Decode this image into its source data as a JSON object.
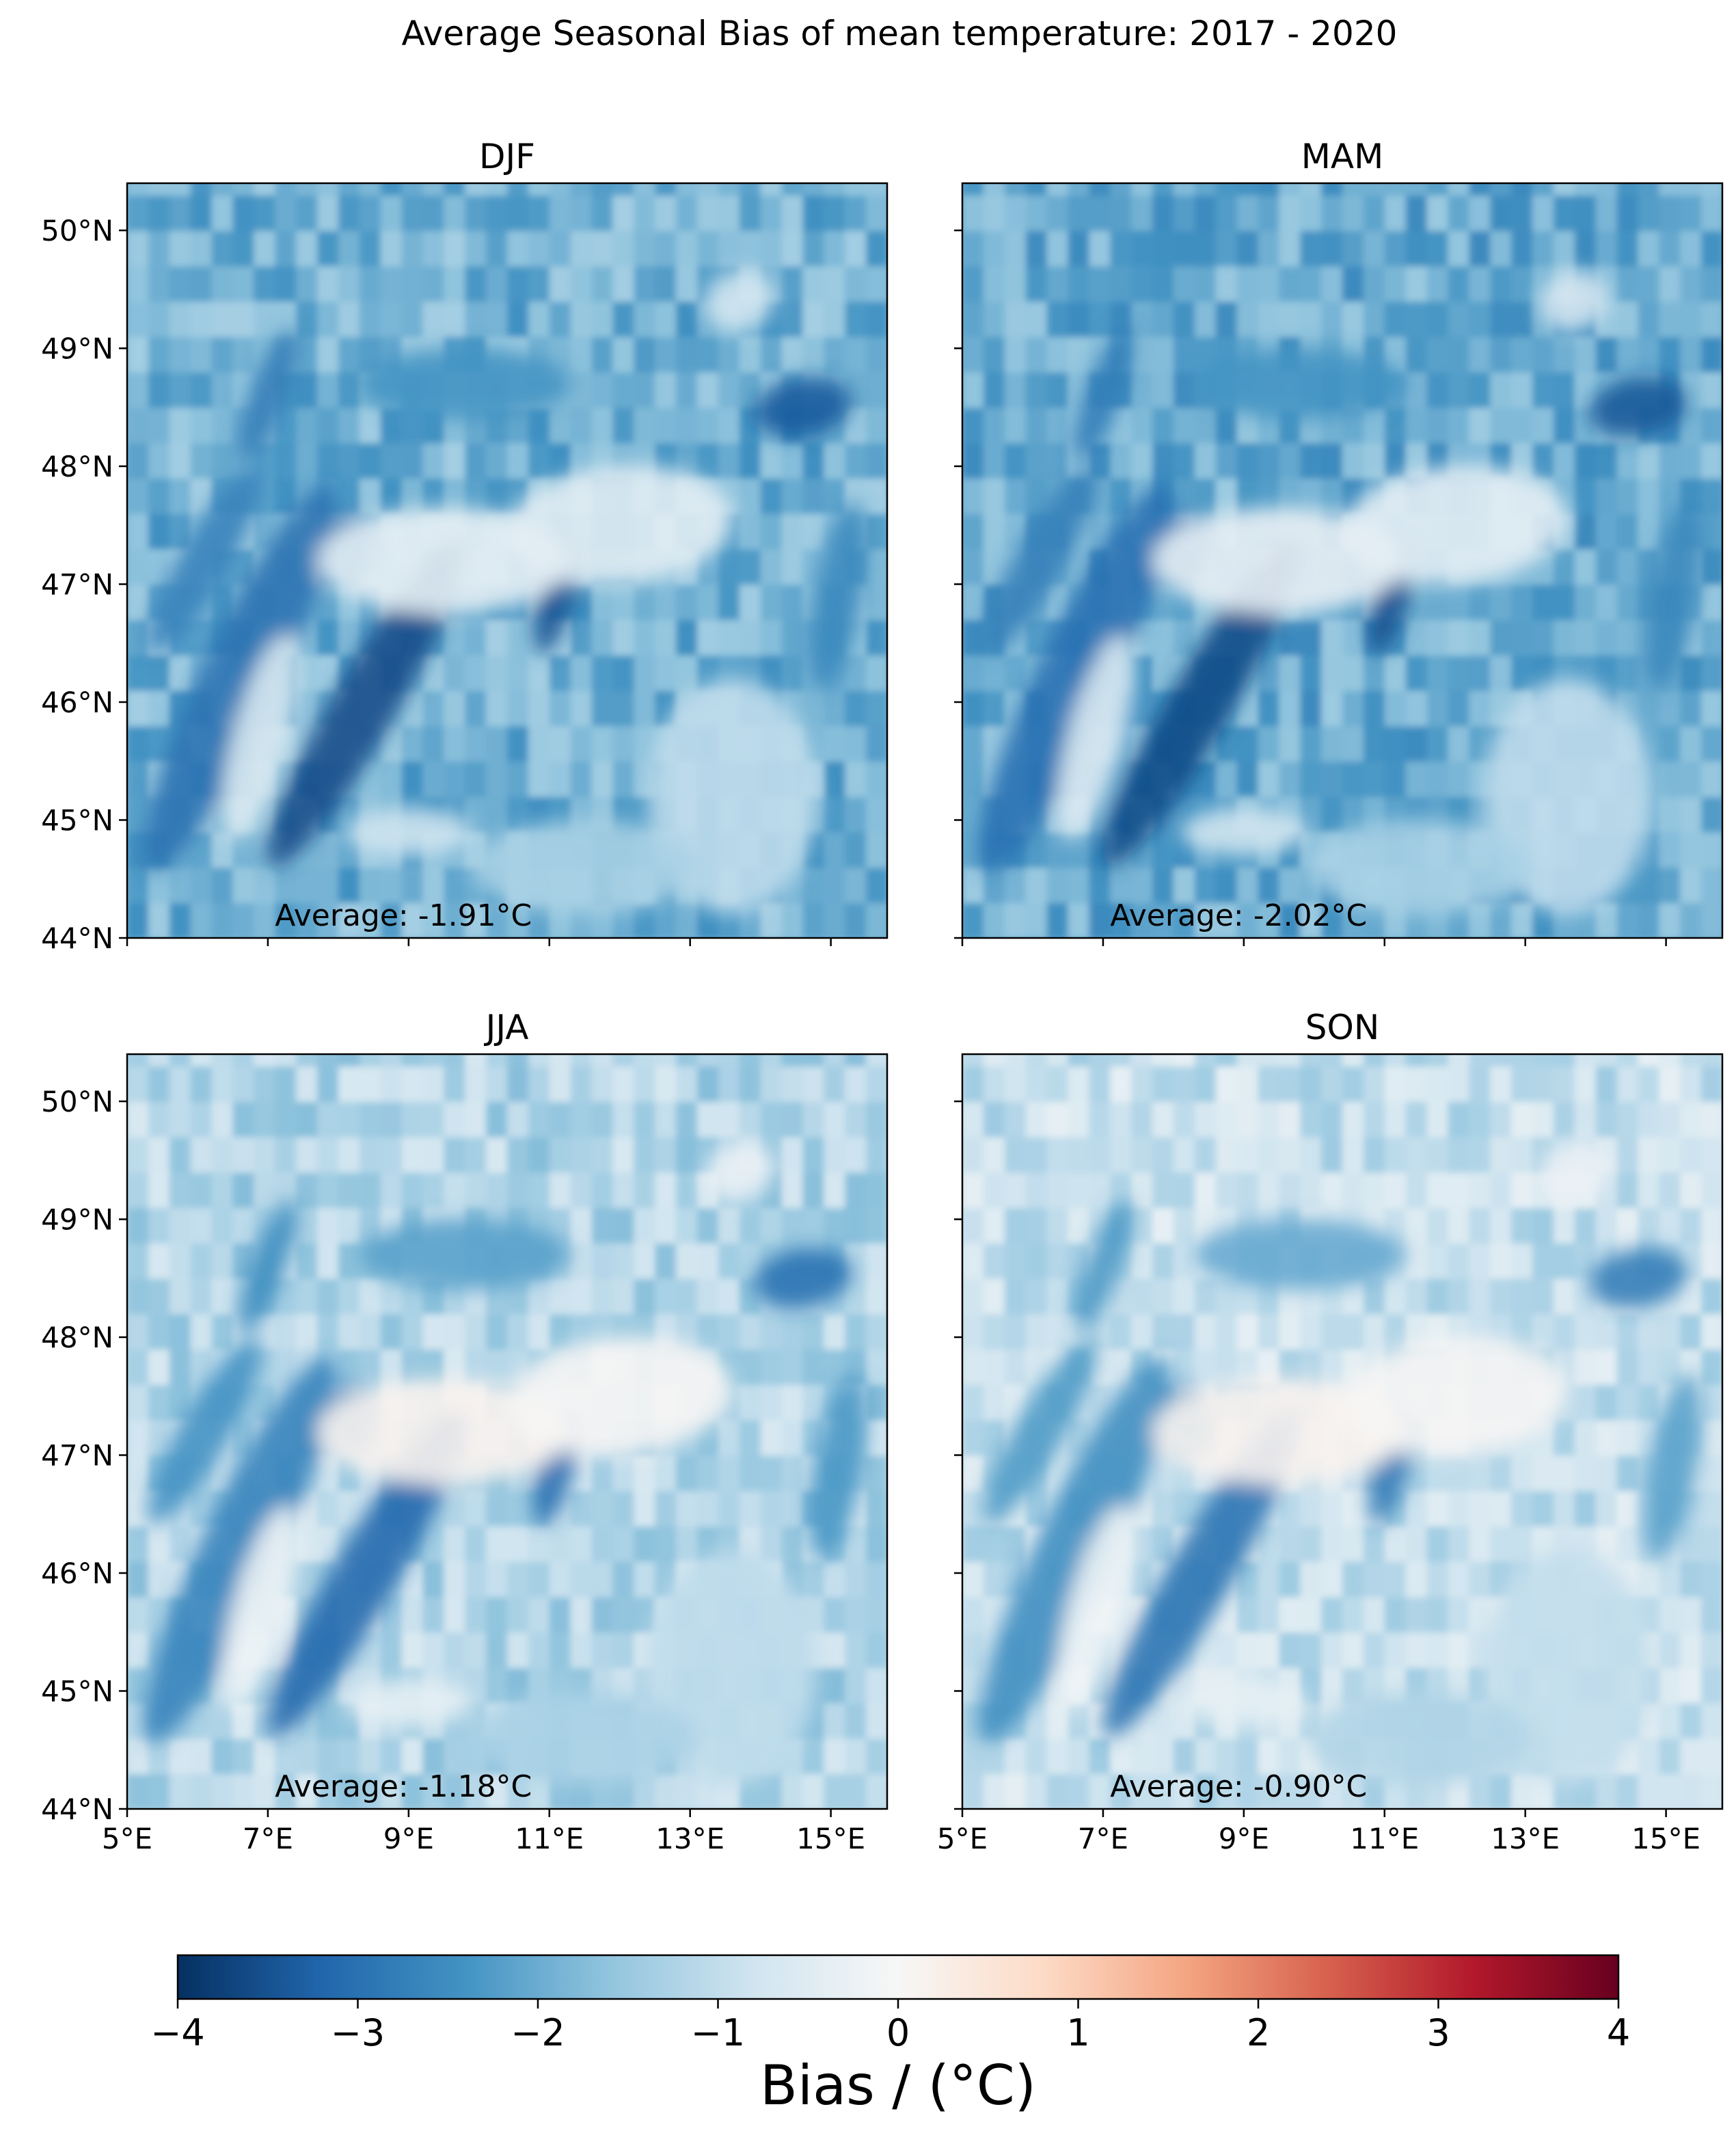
{
  "figure": {
    "title": "Average Seasonal Bias of mean temperature: 2017 - 2020"
  },
  "chart_data": {
    "type": "heatmap",
    "title": "Average Seasonal Bias of mean temperature: 2017 - 2020",
    "panels": [
      {
        "title": "DJF",
        "annotation": "Average: -1.91°C",
        "average": -1.91
      },
      {
        "title": "MAM",
        "annotation": "Average: -2.02°C",
        "average": -2.02
      },
      {
        "title": "JJA",
        "annotation": "Average: -1.18°C",
        "average": -1.18
      },
      {
        "title": "SON",
        "annotation": "Average: -0.90°C",
        "average": -0.9
      }
    ],
    "x_ticks": [
      "5°E",
      "7°E",
      "9°E",
      "11°E",
      "13°E",
      "15°E"
    ],
    "x_tick_values": [
      5,
      7,
      9,
      11,
      13,
      15
    ],
    "xlim": [
      5,
      15.8
    ],
    "y_ticks": [
      "44°N",
      "45°N",
      "46°N",
      "47°N",
      "48°N",
      "49°N",
      "50°N"
    ],
    "y_tick_values": [
      44,
      45,
      46,
      47,
      48,
      49,
      50
    ],
    "ylim": [
      44,
      50.4
    ],
    "colorbar": {
      "label": "Bias / (°C)",
      "ticks": [
        "−4",
        "−3",
        "−2",
        "−1",
        "0",
        "1",
        "2",
        "3",
        "4"
      ],
      "tick_values": [
        -4,
        -3,
        -2,
        -1,
        0,
        1,
        2,
        3,
        4
      ],
      "range": [
        -4,
        4
      ],
      "colormap": "RdBu_r",
      "colors": [
        "#053061",
        "#2166ac",
        "#4393c3",
        "#92c5de",
        "#d1e5f0",
        "#f7f7f7",
        "#fddbc7",
        "#f4a582",
        "#d6604d",
        "#b2182b",
        "#67001f"
      ]
    }
  }
}
